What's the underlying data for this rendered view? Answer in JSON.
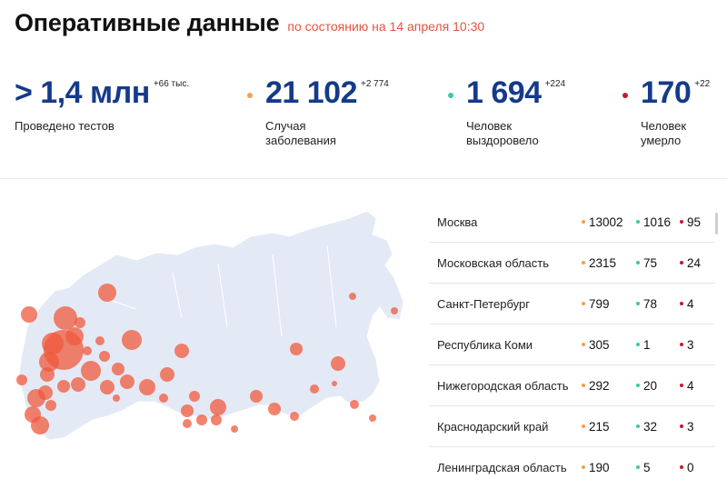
{
  "header": {
    "title": "Оперативные данные",
    "subtitle": "по состоянию на 14 апреля 10:30"
  },
  "colors": {
    "tests": "#163a8a",
    "cases": "#f5a04a",
    "recovered": "#3cc8a8",
    "deaths": "#c8192c",
    "map_land": "#e3e9f5",
    "bubble": "#f05a3c"
  },
  "stats": [
    {
      "value": "> 1,4 млн",
      "delta": "+66 тыс.",
      "label": "Проведено тестов",
      "dot": ""
    },
    {
      "value": "21 102",
      "delta": "+2 774",
      "label": "Случая заболевания",
      "dot": "#f5a04a"
    },
    {
      "value": "1 694",
      "delta": "+224",
      "label": "Человек выздоровело",
      "dot": "#3cc8a8"
    },
    {
      "value": "170",
      "delta": "+22",
      "label": "Человек умерло",
      "dot": "#c8192c"
    }
  ],
  "regions": [
    {
      "name": "Москва",
      "cases": "13002",
      "recovered": "1016",
      "deaths": "95"
    },
    {
      "name": "Московская область",
      "cases": "2315",
      "recovered": "75",
      "deaths": "24"
    },
    {
      "name": "Санкт-Петербург",
      "cases": "799",
      "recovered": "78",
      "deaths": "4"
    },
    {
      "name": "Республика Коми",
      "cases": "305",
      "recovered": "1",
      "deaths": "3"
    },
    {
      "name": "Нижегородская область",
      "cases": "292",
      "recovered": "20",
      "deaths": "4"
    },
    {
      "name": "Краснодарский край",
      "cases": "215",
      "recovered": "32",
      "deaths": "3"
    },
    {
      "name": "Ленинградская область",
      "cases": "190",
      "recovered": "5",
      "deaths": "0"
    }
  ]
}
